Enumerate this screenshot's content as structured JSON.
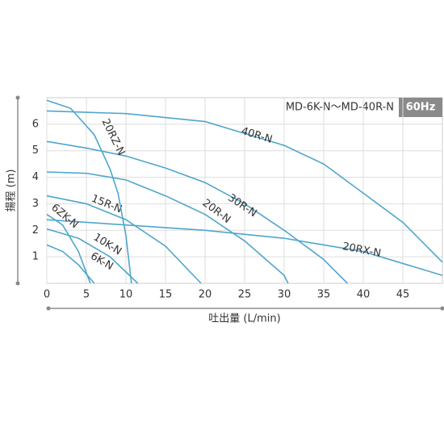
{
  "chart_data": {
    "type": "line",
    "title": "MD-6K-N～MD-40R-N",
    "subtitle": "60Hz",
    "x_label": "吐出量 (L/min)",
    "y_label": "揚程 (m)",
    "xlim": [
      0,
      50
    ],
    "ylim": [
      0,
      7
    ],
    "xticks": [
      0,
      5,
      10,
      15,
      20,
      25,
      30,
      35,
      40,
      45
    ],
    "yticks": [
      1,
      2,
      3,
      4,
      5,
      6
    ],
    "grid": true,
    "series": [
      {
        "name": "40R-N",
        "color": "#4fa6cc",
        "x": [
          0,
          10,
          20,
          30,
          35,
          40,
          45,
          50
        ],
        "values": [
          6.5,
          6.4,
          6.1,
          5.2,
          4.5,
          3.4,
          2.3,
          0.8
        ]
      },
      {
        "name": "30R-N",
        "color": "#4fa6cc",
        "x": [
          0,
          5,
          10,
          15,
          20,
          25,
          30,
          35,
          38
        ],
        "values": [
          5.35,
          5.1,
          4.8,
          4.35,
          3.8,
          3.0,
          2.0,
          0.9,
          0
        ]
      },
      {
        "name": "20R-N",
        "color": "#4fa6cc",
        "x": [
          0,
          5,
          10,
          15,
          20,
          25,
          30,
          30.5
        ],
        "values": [
          4.2,
          4.15,
          3.9,
          3.3,
          2.6,
          1.6,
          0.3,
          0
        ]
      },
      {
        "name": "15R-N",
        "color": "#4fa6cc",
        "x": [
          0,
          5,
          10,
          15,
          19.5
        ],
        "values": [
          3.3,
          3.0,
          2.4,
          1.4,
          0
        ]
      },
      {
        "name": "20RX-N",
        "color": "#4fa6cc",
        "x": [
          0,
          10,
          20,
          30,
          40,
          50
        ],
        "values": [
          2.4,
          2.2,
          2.0,
          1.7,
          1.2,
          0.3
        ]
      },
      {
        "name": "20RZ-N",
        "color": "#4fa6cc",
        "x": [
          0,
          3,
          6,
          8,
          9,
          10,
          10.7
        ],
        "values": [
          6.9,
          6.6,
          5.6,
          4.3,
          3.4,
          1.8,
          0
        ]
      },
      {
        "name": "6ZK-N",
        "color": "#4fa6cc",
        "x": [
          0,
          2,
          4,
          5.5
        ],
        "values": [
          2.6,
          2.2,
          1.2,
          0
        ]
      },
      {
        "name": "10K-N",
        "color": "#4fa6cc",
        "x": [
          0,
          4,
          8,
          11.5
        ],
        "values": [
          2.05,
          1.7,
          1.0,
          0
        ]
      },
      {
        "name": "6K-N",
        "color": "#4fa6cc",
        "x": [
          0,
          2,
          4,
          6
        ],
        "values": [
          1.45,
          1.2,
          0.7,
          0
        ]
      }
    ]
  }
}
